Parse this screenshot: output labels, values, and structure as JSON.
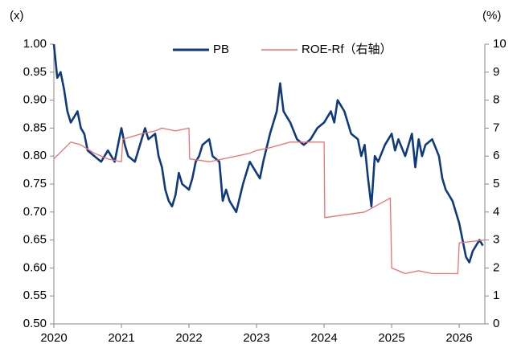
{
  "chart_data": {
    "type": "line",
    "y_unit": "(x)",
    "y2_unit": "(%)",
    "xlim": [
      2020,
      2026.38
    ],
    "xticks": [
      2020,
      2021,
      2022,
      2023,
      2024,
      2025,
      2026
    ],
    "ylim": [
      0.5,
      1.0
    ],
    "yticks": [
      {
        "value": 0.5,
        "label": "0.50"
      },
      {
        "value": 0.55,
        "label": "0.55"
      },
      {
        "value": 0.6,
        "label": "0.60"
      },
      {
        "value": 0.65,
        "label": "0.65"
      },
      {
        "value": 0.7,
        "label": "0.70"
      },
      {
        "value": 0.75,
        "label": "0.75"
      },
      {
        "value": 0.8,
        "label": "0.80"
      },
      {
        "value": 0.85,
        "label": "0.85"
      },
      {
        "value": 0.9,
        "label": "0.90"
      },
      {
        "value": 0.95,
        "label": "0.95"
      },
      {
        "value": 1.0,
        "label": "1.00"
      }
    ],
    "y2lim": [
      0,
      10
    ],
    "y2ticks": [
      0,
      1,
      2,
      3,
      4,
      5,
      6,
      7,
      8,
      9,
      10
    ],
    "grid": false,
    "legend": "top",
    "series": [
      {
        "name": "PB",
        "color": "#0f3a7d",
        "x": [
          2020.0,
          2020.05,
          2020.1,
          2020.15,
          2020.2,
          2020.25,
          2020.3,
          2020.35,
          2020.4,
          2020.45,
          2020.5,
          2020.6,
          2020.7,
          2020.8,
          2020.9,
          2021.0,
          2021.05,
          2021.1,
          2021.2,
          2021.3,
          2021.35,
          2021.4,
          2021.5,
          2021.55,
          2021.6,
          2021.65,
          2021.7,
          2021.75,
          2021.8,
          2021.85,
          2021.9,
          2022.0,
          2022.05,
          2022.1,
          2022.15,
          2022.2,
          2022.3,
          2022.35,
          2022.45,
          2022.5,
          2022.55,
          2022.6,
          2022.7,
          2022.8,
          2022.9,
          2023.0,
          2023.05,
          2023.1,
          2023.2,
          2023.3,
          2023.35,
          2023.4,
          2023.5,
          2023.6,
          2023.7,
          2023.8,
          2023.9,
          2024.0,
          2024.1,
          2024.15,
          2024.2,
          2024.3,
          2024.4,
          2024.5,
          2024.55,
          2024.6,
          2024.65,
          2024.7,
          2024.75,
          2024.8,
          2024.9,
          2025.0,
          2025.05,
          2025.1,
          2025.2,
          2025.3,
          2025.35,
          2025.4,
          2025.45,
          2025.5,
          2025.6,
          2025.7,
          2025.75,
          2025.8,
          2025.9,
          2026.0,
          2026.05,
          2026.1,
          2026.15,
          2026.2,
          2026.25,
          2026.3,
          2026.35
        ],
        "values": [
          1.0,
          0.94,
          0.95,
          0.92,
          0.88,
          0.86,
          0.87,
          0.88,
          0.85,
          0.84,
          0.81,
          0.8,
          0.79,
          0.81,
          0.79,
          0.85,
          0.82,
          0.8,
          0.79,
          0.83,
          0.85,
          0.83,
          0.84,
          0.8,
          0.78,
          0.74,
          0.72,
          0.71,
          0.73,
          0.77,
          0.75,
          0.74,
          0.76,
          0.79,
          0.8,
          0.82,
          0.83,
          0.8,
          0.79,
          0.72,
          0.74,
          0.72,
          0.7,
          0.75,
          0.79,
          0.77,
          0.76,
          0.79,
          0.84,
          0.88,
          0.93,
          0.88,
          0.86,
          0.83,
          0.82,
          0.83,
          0.85,
          0.86,
          0.88,
          0.86,
          0.9,
          0.88,
          0.84,
          0.83,
          0.8,
          0.82,
          0.76,
          0.71,
          0.8,
          0.79,
          0.82,
          0.84,
          0.81,
          0.83,
          0.8,
          0.84,
          0.78,
          0.83,
          0.8,
          0.82,
          0.83,
          0.8,
          0.76,
          0.74,
          0.72,
          0.68,
          0.65,
          0.62,
          0.61,
          0.63,
          0.64,
          0.65,
          0.64
        ]
      },
      {
        "name": "ROE-Rf（右轴）",
        "color": "#f07070",
        "axis": "y2",
        "x": [
          2020.0,
          2020.25,
          2020.4,
          2020.6,
          2020.8,
          2021.0,
          2021.02,
          2021.3,
          2021.5,
          2021.6,
          2021.8,
          2022.0,
          2022.01,
          2022.3,
          2022.5,
          2022.7,
          2022.9,
          2023.0,
          2023.2,
          2023.5,
          2023.8,
          2024.0,
          2024.01,
          2024.3,
          2024.6,
          2024.98,
          2025.0,
          2025.2,
          2025.4,
          2025.6,
          2025.98,
          2026.0,
          2026.38
        ],
        "values": [
          5.9,
          6.5,
          6.4,
          6.1,
          5.9,
          5.8,
          6.6,
          6.8,
          6.9,
          7.0,
          6.9,
          7.0,
          5.9,
          5.8,
          5.9,
          6.0,
          6.1,
          6.2,
          6.3,
          6.5,
          6.5,
          6.5,
          3.8,
          3.9,
          4.0,
          4.5,
          2.0,
          1.8,
          1.9,
          1.8,
          1.8,
          2.9,
          3.0
        ]
      }
    ]
  }
}
